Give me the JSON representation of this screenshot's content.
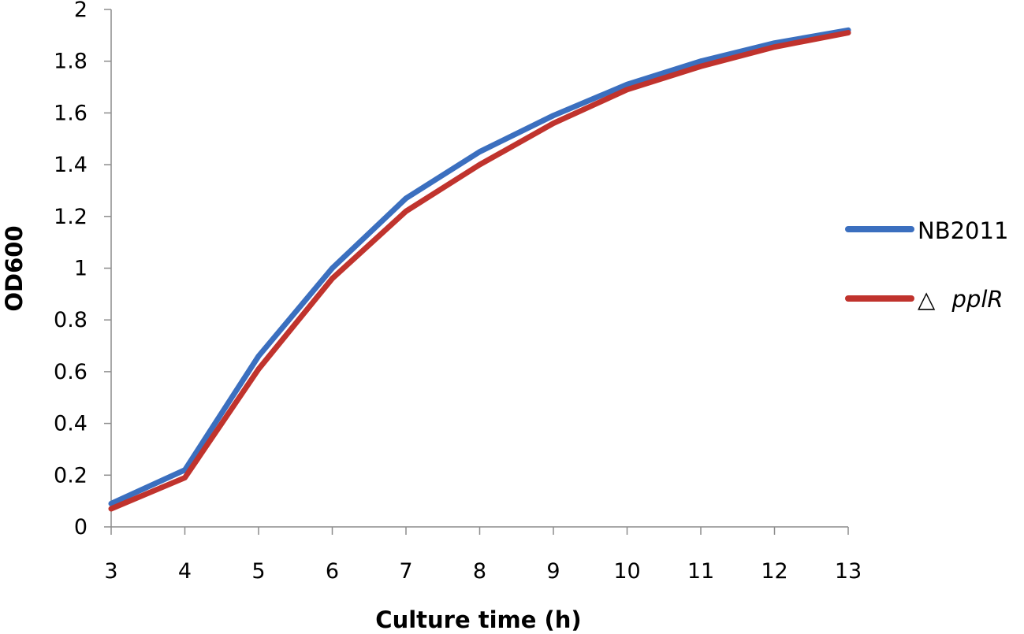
{
  "chart_data": {
    "type": "line",
    "xlabel": "Culture time (h)",
    "ylabel": "OD600",
    "x": [
      3,
      4,
      5,
      6,
      7,
      8,
      9,
      10,
      11,
      12,
      13
    ],
    "xlim": [
      3,
      13
    ],
    "ylim": [
      0,
      2
    ],
    "x_ticks": [
      "3",
      "4",
      "5",
      "6",
      "7",
      "8",
      "9",
      "10",
      "11",
      "12",
      "13"
    ],
    "y_ticks": [
      "0",
      "0.2",
      "0.4",
      "0.6",
      "0.8",
      "1",
      "1.2",
      "1.4",
      "1.6",
      "1.8",
      "2"
    ],
    "grid": false,
    "legend_position": "right",
    "series": [
      {
        "name": "NB2011",
        "color": "#3b6fbf",
        "values": [
          0.09,
          0.22,
          0.66,
          1.0,
          1.27,
          1.45,
          1.59,
          1.71,
          1.8,
          1.87,
          1.92
        ]
      },
      {
        "name_prefix": "△",
        "name": "pplR",
        "color": "#c0332d",
        "values": [
          0.07,
          0.19,
          0.61,
          0.96,
          1.22,
          1.4,
          1.56,
          1.69,
          1.78,
          1.855,
          1.91
        ]
      }
    ]
  }
}
